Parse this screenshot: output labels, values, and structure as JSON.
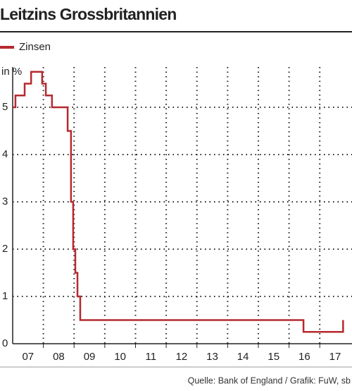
{
  "chart_data": {
    "type": "line",
    "step": "post",
    "title": "Leitzins Grossbritannien",
    "y_label": "in %",
    "source": "Quelle: Bank of England / Grafik: FuW, sb",
    "x": [
      2007.0,
      2007.09,
      2007.39,
      2007.6,
      2007.96,
      2008.08,
      2008.28,
      2008.79,
      2008.9,
      2008.97,
      2009.04,
      2009.11,
      2009.2,
      2016.47,
      2017.76
    ],
    "series": [
      {
        "name": "Zinsen",
        "color": "#b5292e",
        "values": [
          5.0,
          5.25,
          5.5,
          5.75,
          5.5,
          5.25,
          5.0,
          4.5,
          3.0,
          2.0,
          1.5,
          1.0,
          0.5,
          0.25,
          0.5
        ]
      }
    ],
    "xlim": [
      2007.0,
      2018.05
    ],
    "xticks": [
      {
        "value": 2007.5,
        "label": "07"
      },
      {
        "value": 2008.5,
        "label": "08"
      },
      {
        "value": 2009.5,
        "label": "09"
      },
      {
        "value": 2010.5,
        "label": "10"
      },
      {
        "value": 2011.5,
        "label": "11"
      },
      {
        "value": 2012.5,
        "label": "12"
      },
      {
        "value": 2013.5,
        "label": "13"
      },
      {
        "value": 2014.5,
        "label": "14"
      },
      {
        "value": 2015.5,
        "label": "15"
      },
      {
        "value": 2016.5,
        "label": "16"
      },
      {
        "value": 2017.5,
        "label": "17"
      }
    ],
    "xgrid": [
      2008,
      2009,
      2010,
      2011,
      2012,
      2013,
      2014,
      2015,
      2016,
      2017
    ],
    "ylim": [
      0,
      5.85
    ],
    "yticks": [
      0,
      1,
      2,
      3,
      4,
      5
    ],
    "grid": true
  }
}
